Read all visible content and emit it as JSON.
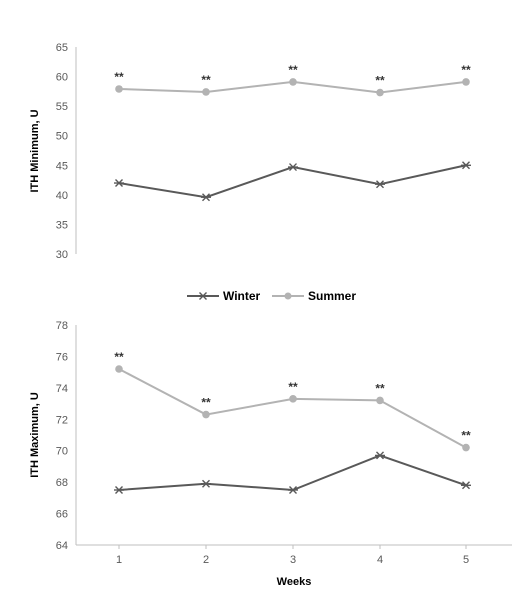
{
  "colors": {
    "winter": "#595959",
    "summer": "#b3b3b3",
    "axis": "#bfbfbf"
  },
  "legend": {
    "winter": "Winter",
    "summer": "Summer"
  },
  "chart_data": [
    {
      "type": "line",
      "title": "",
      "xlabel": "",
      "ylabel": "ITH Minimum, U",
      "ylim": [
        30,
        65
      ],
      "yticks": [
        30,
        35,
        40,
        45,
        50,
        55,
        60,
        65
      ],
      "categories": [
        "1",
        "2",
        "3",
        "4",
        "5"
      ],
      "show_x_tick_labels": false,
      "series": [
        {
          "name": "Winter",
          "marker": "asterisk",
          "values": [
            42.0,
            39.6,
            44.7,
            41.8,
            45.0
          ]
        },
        {
          "name": "Summer",
          "marker": "circle",
          "values": [
            57.9,
            57.4,
            59.1,
            57.3,
            59.1
          ]
        }
      ],
      "annotations": [
        "**",
        "**",
        "**",
        "**",
        "**"
      ],
      "grid": false
    },
    {
      "type": "line",
      "title": "",
      "xlabel": "Weeks",
      "ylabel": "ITH Maximum, U",
      "ylim": [
        64,
        78
      ],
      "yticks": [
        64,
        66,
        68,
        70,
        72,
        74,
        76,
        78
      ],
      "categories": [
        "1",
        "2",
        "3",
        "4",
        "5"
      ],
      "show_x_tick_labels": true,
      "series": [
        {
          "name": "Winter",
          "marker": "asterisk",
          "values": [
            67.5,
            67.9,
            67.5,
            69.7,
            67.8
          ]
        },
        {
          "name": "Summer",
          "marker": "circle",
          "values": [
            75.2,
            72.3,
            73.3,
            73.2,
            70.2
          ]
        }
      ],
      "annotations": [
        "**",
        "**",
        "**",
        "**",
        "**"
      ],
      "grid": false
    }
  ]
}
